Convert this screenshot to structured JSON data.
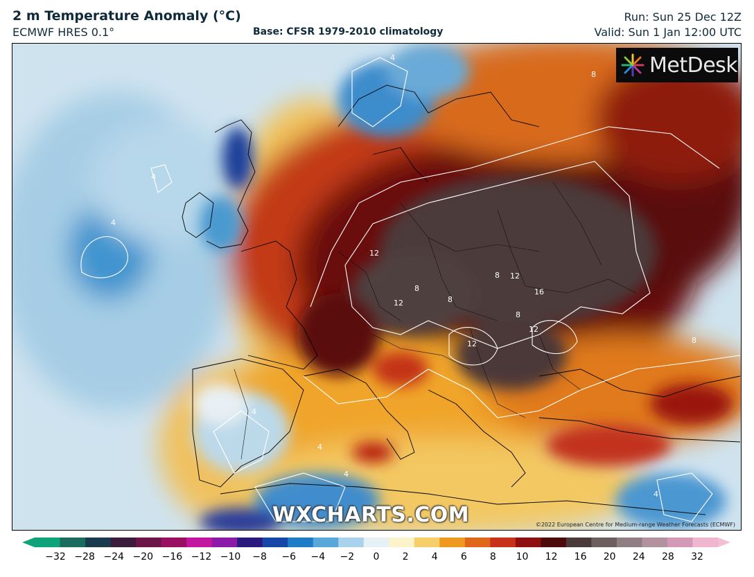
{
  "header": {
    "title": "2 m Temperature Anomaly (°C)",
    "model": "ECMWF HRES 0.1°",
    "base": "Base: CFSR 1979-2010 climatology",
    "run": "Run: Sun 25 Dec 12Z",
    "valid": "Valid: Sun 1 Jan 12:00 UTC"
  },
  "branding": {
    "logo": "MetDesk",
    "watermark": "WXCHARTS.COM",
    "copyright": "©2022 European Centre for Medium-range Weather Forecasts (ECMWF)"
  },
  "contour_labels": [
    "4",
    "4",
    "4",
    "8",
    "8",
    "8",
    "8",
    "8",
    "8",
    "12",
    "12",
    "12",
    "12",
    "12",
    "16",
    "4",
    "4",
    "4",
    "4"
  ],
  "colorbar": {
    "ticks": [
      "−32",
      "−28",
      "−24",
      "−20",
      "−16",
      "−12",
      "−10",
      "−8",
      "−6",
      "−4",
      "−2",
      "0",
      "2",
      "4",
      "6",
      "8",
      "10",
      "12",
      "16",
      "20",
      "24",
      "28",
      "32"
    ],
    "colors": [
      "#0fa37a",
      "#1b6b5e",
      "#1a3b4d",
      "#3b1c3a",
      "#6b1646",
      "#9a1060",
      "#c415a0",
      "#8b1aa8",
      "#2a1a7d",
      "#1646a8",
      "#1f7cc6",
      "#5aa8da",
      "#a9d3ec",
      "#e6f1f6",
      "#fbf3c9",
      "#f6cf6a",
      "#ee9a20",
      "#e0661a",
      "#c8321a",
      "#8e1010",
      "#4d0a0a",
      "#4a3a3a",
      "#6e5f5f",
      "#8f7f82",
      "#b392a0",
      "#d39ab8",
      "#f0b6cf"
    ],
    "under_color": "#0fa37a",
    "over_color": "#f3bfd5"
  }
}
